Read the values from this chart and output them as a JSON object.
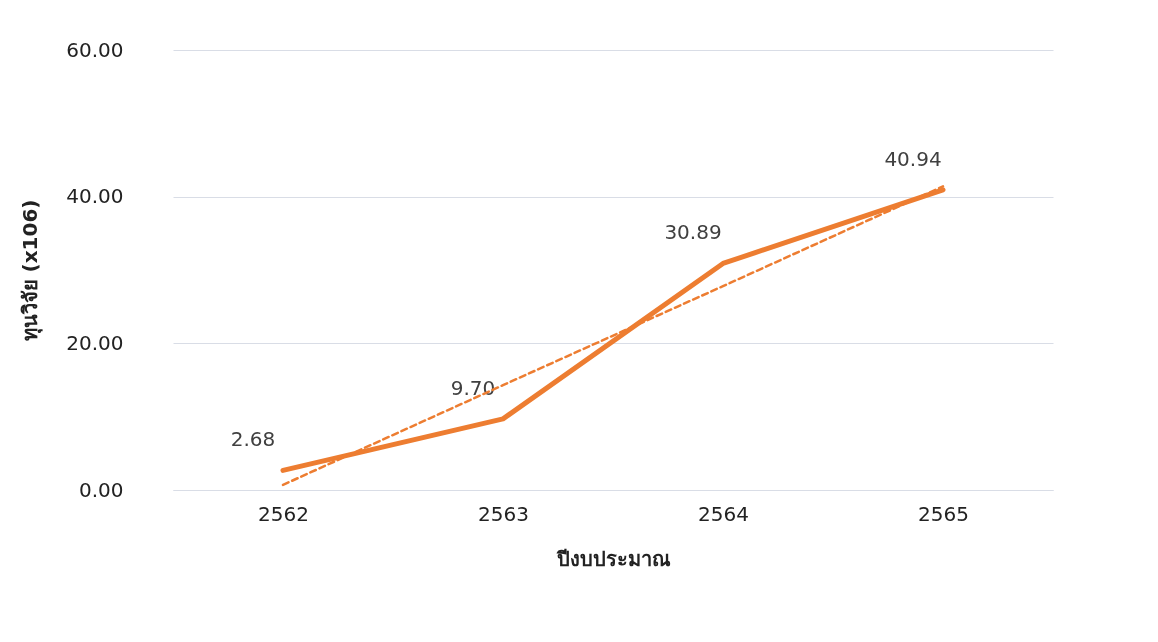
{
  "chart_data": {
    "type": "line",
    "xlabel": "ปีงบประมาณ",
    "ylabel": "ทุนวิจัย (x106)",
    "categories": [
      "2562",
      "2563",
      "2564",
      "2565"
    ],
    "series": [
      {
        "color": "#ed7d31",
        "values": [
          2.68,
          9.7,
          30.89,
          40.94
        ],
        "value_labels": [
          "2.68",
          "9.70",
          "30.89",
          "40.94"
        ],
        "line_style": "solid"
      },
      {
        "color": "#ed7d31",
        "values": [
          0.7,
          14.3,
          27.8,
          41.4
        ],
        "line_style": "dashed"
      }
    ],
    "ylim": [
      0,
      60
    ],
    "yticks": [
      {
        "value": 0,
        "label": "0.00"
      },
      {
        "value": 20,
        "label": "20.00"
      },
      {
        "value": 40,
        "label": "40.00"
      },
      {
        "value": 60,
        "label": "60.00"
      }
    ],
    "grid": "y"
  }
}
